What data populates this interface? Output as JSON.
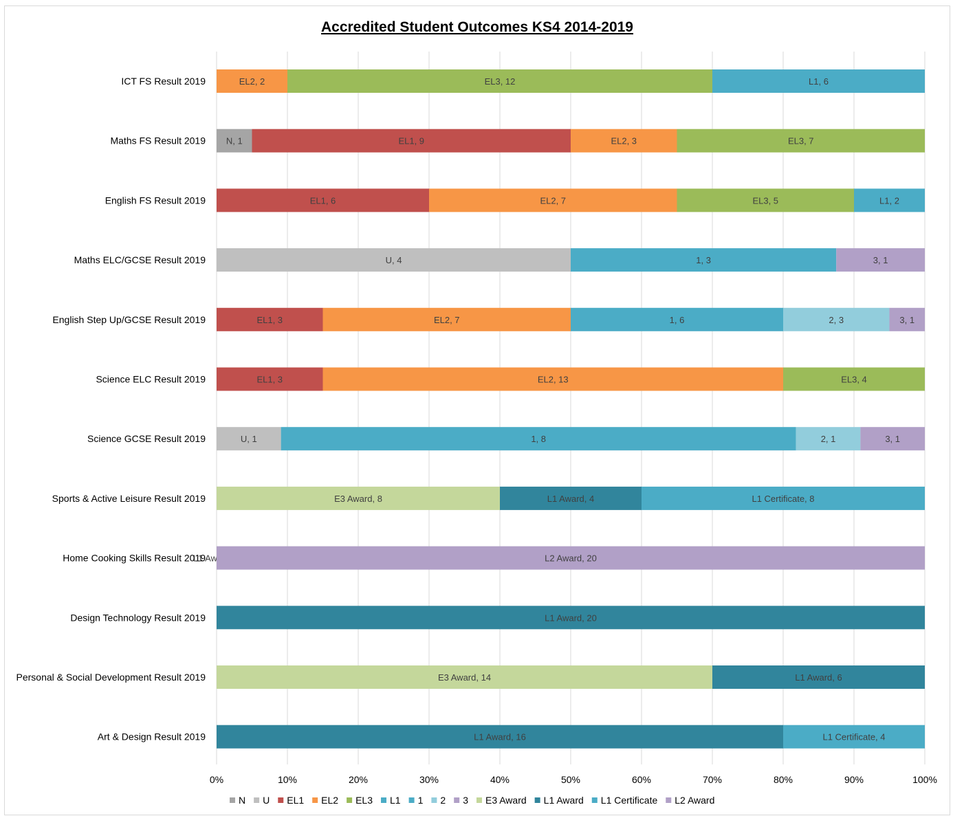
{
  "chart_data": {
    "type": "bar",
    "orientation": "horizontal",
    "stacked": "percent",
    "title": "Accredited Student Outcomes KS4 2014-2019",
    "xlim": [
      0,
      1
    ],
    "x_ticks": [
      "0%",
      "10%",
      "20%",
      "30%",
      "40%",
      "50%",
      "60%",
      "70%",
      "80%",
      "90%",
      "100%"
    ],
    "grid": true,
    "legend_position": "bottom",
    "legend": [
      {
        "name": "N",
        "color": "#A5A5A5"
      },
      {
        "name": "U",
        "color": "#BFBFBF"
      },
      {
        "name": "EL1",
        "color": "#C0504D"
      },
      {
        "name": "EL2",
        "color": "#F79646"
      },
      {
        "name": "EL3",
        "color": "#9BBB59"
      },
      {
        "name": "L1",
        "color": "#4BACC6"
      },
      {
        "name": "1",
        "color": "#4BACC6"
      },
      {
        "name": "2",
        "color": "#92CDDC"
      },
      {
        "name": "3",
        "color": "#B1A0C7"
      },
      {
        "name": "E3 Award",
        "color": "#C4D79B"
      },
      {
        "name": "L1 Award",
        "color": "#31859C"
      },
      {
        "name": "L1 Certificate",
        "color": "#4BACC6"
      },
      {
        "name": "L2 Award",
        "color": "#B1A0C7"
      }
    ],
    "categories": [
      {
        "name": "ICT FS Result 2019",
        "segments": [
          {
            "series": "EL2",
            "value": 2
          },
          {
            "series": "EL3",
            "value": 12
          },
          {
            "series": "L1",
            "value": 6
          }
        ]
      },
      {
        "name": "Maths FS Result 2019",
        "segments": [
          {
            "series": "N",
            "value": 1
          },
          {
            "series": "EL1",
            "value": 9
          },
          {
            "series": "EL2",
            "value": 3
          },
          {
            "series": "EL3",
            "value": 7
          }
        ]
      },
      {
        "name": "English FS Result 2019",
        "segments": [
          {
            "series": "EL1",
            "value": 6
          },
          {
            "series": "EL2",
            "value": 7
          },
          {
            "series": "EL3",
            "value": 5
          },
          {
            "series": "L1",
            "value": 2
          }
        ]
      },
      {
        "name": "Maths ELC/GCSE Result 2019",
        "segments": [
          {
            "series": "U",
            "value": 4
          },
          {
            "series": "1",
            "value": 3
          },
          {
            "series": "3",
            "value": 1
          }
        ]
      },
      {
        "name": "English Step Up/GCSE Result 2019",
        "segments": [
          {
            "series": "EL1",
            "value": 3
          },
          {
            "series": "EL2",
            "value": 7
          },
          {
            "series": "1",
            "value": 6
          },
          {
            "series": "2",
            "value": 3
          },
          {
            "series": "3",
            "value": 1
          }
        ]
      },
      {
        "name": "Science ELC Result 2019",
        "segments": [
          {
            "series": "EL1",
            "value": 3
          },
          {
            "series": "EL2",
            "value": 13
          },
          {
            "series": "EL3",
            "value": 4
          }
        ]
      },
      {
        "name": "Science GCSE Result 2019",
        "segments": [
          {
            "series": "U",
            "value": 1
          },
          {
            "series": "1",
            "value": 8
          },
          {
            "series": "2",
            "value": 1
          },
          {
            "series": "3",
            "value": 1
          }
        ]
      },
      {
        "name": "Sports & Active Leisure Result 2019",
        "segments": [
          {
            "series": "E3 Award",
            "value": 8
          },
          {
            "series": "L1 Award",
            "value": 4
          },
          {
            "series": "L1 Certificate",
            "value": 8
          }
        ]
      },
      {
        "name": "Home Cooking Skills  Result 2019",
        "segments": [
          {
            "series": "L1 Award",
            "value": 0
          },
          {
            "series": "L2 Award",
            "value": 20
          }
        ]
      },
      {
        "name": "Design Technology  Result 2019",
        "segments": [
          {
            "series": "L1 Award",
            "value": 20
          }
        ]
      },
      {
        "name": "Personal & Social Development Result 2019",
        "segments": [
          {
            "series": "E3 Award",
            "value": 14
          },
          {
            "series": "L1 Award",
            "value": 6
          }
        ]
      },
      {
        "name": "Art & Design  Result 2019",
        "segments": [
          {
            "series": "L1 Award",
            "value": 16
          },
          {
            "series": "L1 Certificate",
            "value": 4
          }
        ]
      }
    ]
  }
}
